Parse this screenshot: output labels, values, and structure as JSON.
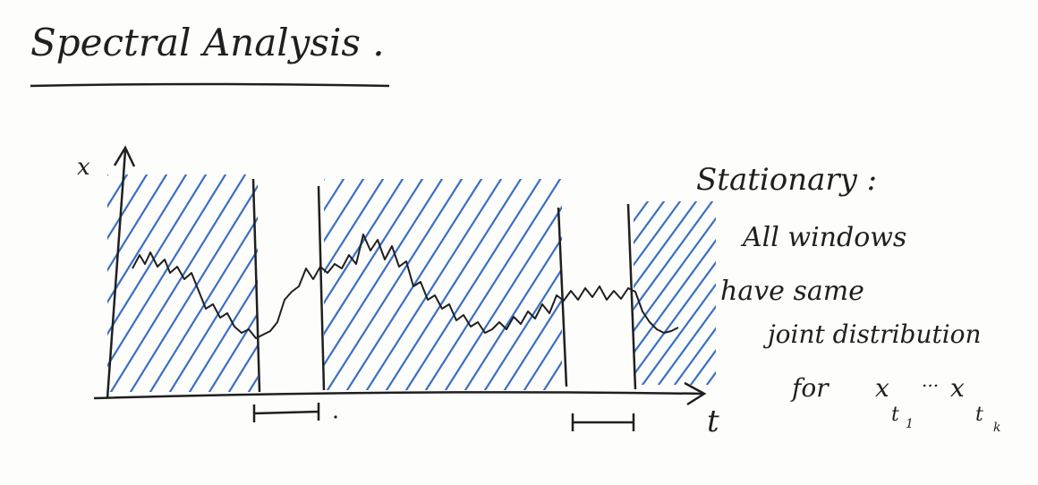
{
  "title": "Spectral Analysis .",
  "axes": {
    "y_label": "x",
    "x_label": "t"
  },
  "note": {
    "heading": "Stationary :",
    "lines": [
      "All windows",
      "have same",
      "joint distribution",
      "for"
    ],
    "variables": {
      "first": "x",
      "first_sub": "t",
      "first_sub_index": "1",
      "dots": "...",
      "second": "x",
      "second_sub": "t",
      "second_sub_index": "k"
    }
  },
  "colors": {
    "ink": "#1f1f1f",
    "hatch": "#3b6fc4",
    "paper": "#fdfdfc"
  },
  "windows": {
    "count": 2,
    "shading": "hatched blue outside windows",
    "signal": "random-walk-like curve"
  }
}
